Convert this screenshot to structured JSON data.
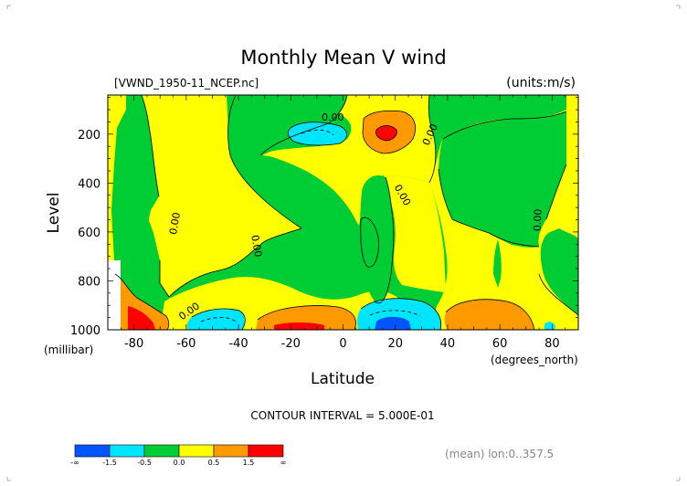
{
  "chart_data": {
    "type": "heatmap",
    "title": "Monthly Mean V wind",
    "file_label": "[VWND_1950-11_NCEP.nc]",
    "units_label": "(units:m/s)",
    "ylabel": "Level",
    "y_unit": "(millibar)",
    "xlabel": "Latitude",
    "x_unit": "(degrees_north)",
    "xlim": [
      -90,
      90
    ],
    "ylim": [
      1000,
      40
    ],
    "x_ticks": [
      "-80",
      "-60",
      "-40",
      "-20",
      "0",
      "20",
      "40",
      "60",
      "80"
    ],
    "x_tick_values": [
      -80,
      -60,
      -40,
      -20,
      0,
      20,
      40,
      60,
      80
    ],
    "y_ticks": [
      "200",
      "400",
      "600",
      "800",
      "1000"
    ],
    "y_tick_values": [
      200,
      400,
      600,
      800,
      1000
    ],
    "contour_interval_label": "CONTOUR INTERVAL = 5.000E-01",
    "contour_labels": [
      "0.00",
      "0.00",
      "0.00",
      "0.00",
      "0.00",
      "0.00",
      "0.00"
    ],
    "colorbar": {
      "colors": [
        "#0055ff",
        "#00e5ff",
        "#00cc33",
        "#ffff00",
        "#ff9900",
        "#ff0000"
      ],
      "labels": [
        "-∞",
        "-1.5",
        "-0.5",
        "0.0",
        "0.5",
        "1.5",
        "∞"
      ],
      "boundaries": [
        -1.5,
        -0.5,
        0.0,
        0.5,
        1.5
      ]
    },
    "footnote": "(mean) lon:0..357.5",
    "grid": false,
    "legend": "bottom-left colorbar"
  },
  "colors": {
    "blue": "#0055ff",
    "cyan": "#00e5ff",
    "green": "#00cc33",
    "yellow": "#ffff00",
    "orange": "#ff9900",
    "red": "#ff0000"
  }
}
